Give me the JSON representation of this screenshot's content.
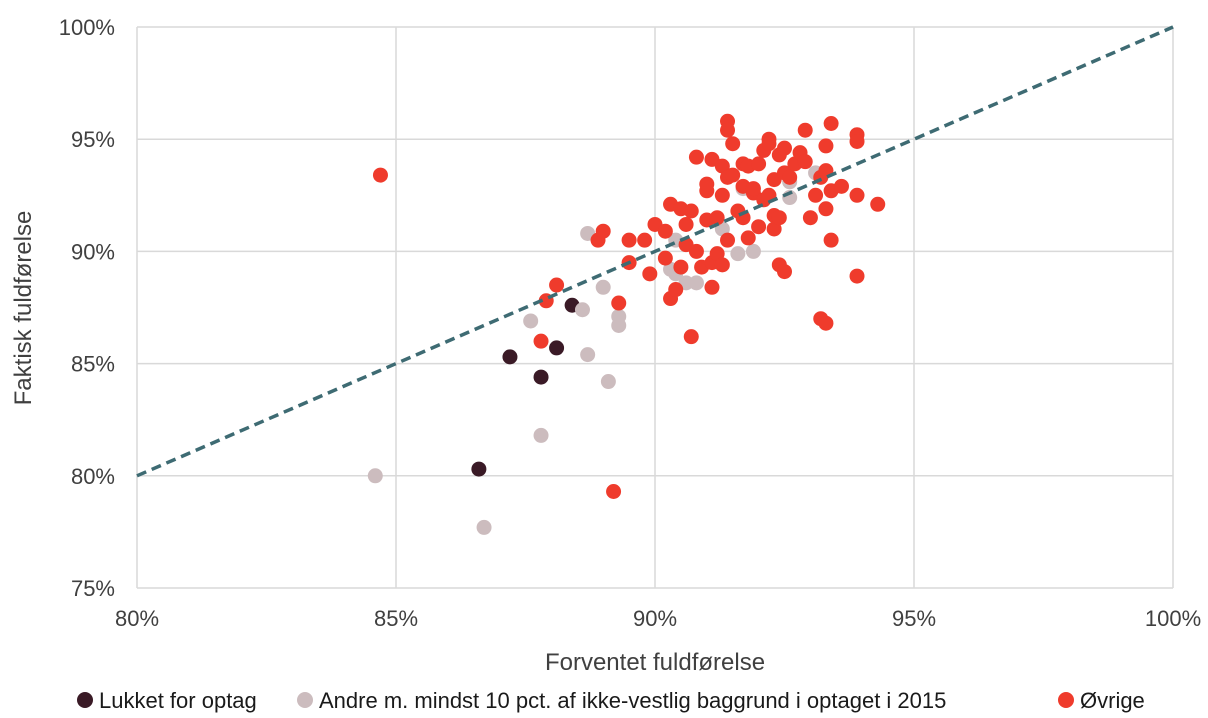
{
  "chart_data": {
    "type": "scatter",
    "xlabel": "Forventet fuldførelse",
    "ylabel": "Faktisk fuldførelse",
    "xlim": [
      80,
      100
    ],
    "ylim": [
      75,
      100
    ],
    "x_ticks": [
      "80%",
      "85%",
      "90%",
      "95%",
      "100%"
    ],
    "y_ticks": [
      "75%",
      "80%",
      "85%",
      "90%",
      "95%",
      "100%"
    ],
    "grid": true,
    "legend_position": "bottom",
    "reference_line": {
      "style": "dashed",
      "color": "#3e6b73",
      "from": [
        80,
        80
      ],
      "to": [
        100,
        100
      ]
    },
    "series": [
      {
        "name": "Lukket for optag",
        "color": "#3a1a26",
        "points": [
          [
            88.4,
            87.6
          ],
          [
            87.2,
            85.3
          ],
          [
            88.1,
            85.7
          ],
          [
            87.8,
            84.4
          ],
          [
            86.6,
            80.3
          ]
        ]
      },
      {
        "name": "Andre m. mindst 10 pct. af ikke-vestlig baggrund i optaget i 2015",
        "color": "#ccbcbe",
        "points": [
          [
            84.6,
            80.0
          ],
          [
            86.7,
            77.7
          ],
          [
            87.8,
            81.8
          ],
          [
            89.1,
            84.2
          ],
          [
            88.7,
            85.4
          ],
          [
            87.6,
            86.9
          ],
          [
            88.6,
            87.4
          ],
          [
            89.0,
            88.4
          ],
          [
            89.3,
            87.1
          ],
          [
            89.3,
            86.7
          ],
          [
            88.7,
            90.8
          ],
          [
            90.3,
            89.2
          ],
          [
            90.4,
            89.0
          ],
          [
            90.6,
            88.6
          ],
          [
            90.8,
            88.6
          ],
          [
            91.2,
            89.6
          ],
          [
            91.3,
            91.0
          ],
          [
            91.6,
            89.9
          ],
          [
            91.9,
            90.0
          ],
          [
            92.6,
            92.4
          ],
          [
            92.6,
            93.1
          ],
          [
            93.1,
            93.5
          ],
          [
            90.4,
            90.5
          ],
          [
            91.7,
            92.8
          ]
        ]
      },
      {
        "name": "Øvrige",
        "color": "#ef3b2c",
        "points": [
          [
            84.7,
            93.4
          ],
          [
            87.8,
            86.0
          ],
          [
            87.9,
            87.8
          ],
          [
            88.1,
            88.5
          ],
          [
            88.9,
            90.5
          ],
          [
            89.0,
            90.9
          ],
          [
            89.2,
            79.3
          ],
          [
            89.3,
            87.7
          ],
          [
            89.5,
            89.5
          ],
          [
            89.5,
            90.5
          ],
          [
            89.8,
            90.5
          ],
          [
            89.9,
            89.0
          ],
          [
            90.0,
            91.2
          ],
          [
            90.2,
            90.9
          ],
          [
            90.2,
            89.7
          ],
          [
            90.3,
            87.9
          ],
          [
            90.3,
            92.1
          ],
          [
            90.4,
            88.3
          ],
          [
            90.5,
            91.9
          ],
          [
            90.5,
            89.3
          ],
          [
            90.6,
            91.2
          ],
          [
            90.6,
            90.3
          ],
          [
            90.7,
            91.8
          ],
          [
            90.7,
            86.2
          ],
          [
            90.8,
            94.2
          ],
          [
            90.8,
            90.0
          ],
          [
            90.9,
            89.3
          ],
          [
            91.0,
            92.7
          ],
          [
            91.0,
            93.0
          ],
          [
            91.0,
            91.4
          ],
          [
            91.1,
            88.4
          ],
          [
            91.1,
            89.5
          ],
          [
            91.1,
            94.1
          ],
          [
            91.2,
            91.5
          ],
          [
            91.2,
            89.9
          ],
          [
            91.3,
            89.4
          ],
          [
            91.3,
            93.8
          ],
          [
            91.3,
            92.5
          ],
          [
            91.4,
            95.8
          ],
          [
            91.4,
            95.4
          ],
          [
            91.4,
            93.3
          ],
          [
            91.5,
            94.8
          ],
          [
            91.5,
            93.4
          ],
          [
            91.4,
            90.5
          ],
          [
            91.6,
            91.8
          ],
          [
            91.7,
            93.9
          ],
          [
            91.7,
            92.9
          ],
          [
            91.7,
            91.5
          ],
          [
            91.8,
            90.6
          ],
          [
            91.8,
            93.8
          ],
          [
            91.9,
            92.6
          ],
          [
            91.9,
            92.8
          ],
          [
            92.0,
            91.1
          ],
          [
            92.0,
            93.9
          ],
          [
            92.1,
            94.5
          ],
          [
            92.1,
            92.3
          ],
          [
            92.2,
            92.5
          ],
          [
            92.2,
            95.0
          ],
          [
            92.2,
            94.8
          ],
          [
            92.3,
            93.2
          ],
          [
            92.3,
            91.6
          ],
          [
            92.3,
            91.0
          ],
          [
            92.4,
            94.3
          ],
          [
            92.4,
            89.4
          ],
          [
            92.4,
            91.5
          ],
          [
            92.5,
            94.6
          ],
          [
            92.5,
            89.1
          ],
          [
            92.5,
            93.5
          ],
          [
            92.6,
            93.3
          ],
          [
            92.7,
            93.9
          ],
          [
            92.8,
            94.4
          ],
          [
            92.9,
            95.4
          ],
          [
            92.9,
            94.0
          ],
          [
            93.0,
            91.5
          ],
          [
            93.1,
            92.5
          ],
          [
            93.2,
            93.3
          ],
          [
            93.2,
            87.0
          ],
          [
            93.3,
            93.6
          ],
          [
            93.3,
            91.9
          ],
          [
            93.3,
            86.8
          ],
          [
            93.3,
            94.7
          ],
          [
            93.4,
            95.7
          ],
          [
            93.4,
            92.7
          ],
          [
            93.4,
            90.5
          ],
          [
            93.6,
            92.9
          ],
          [
            93.9,
            95.2
          ],
          [
            93.9,
            94.9
          ],
          [
            93.9,
            92.5
          ],
          [
            93.9,
            88.9
          ],
          [
            94.3,
            92.1
          ]
        ]
      }
    ]
  }
}
